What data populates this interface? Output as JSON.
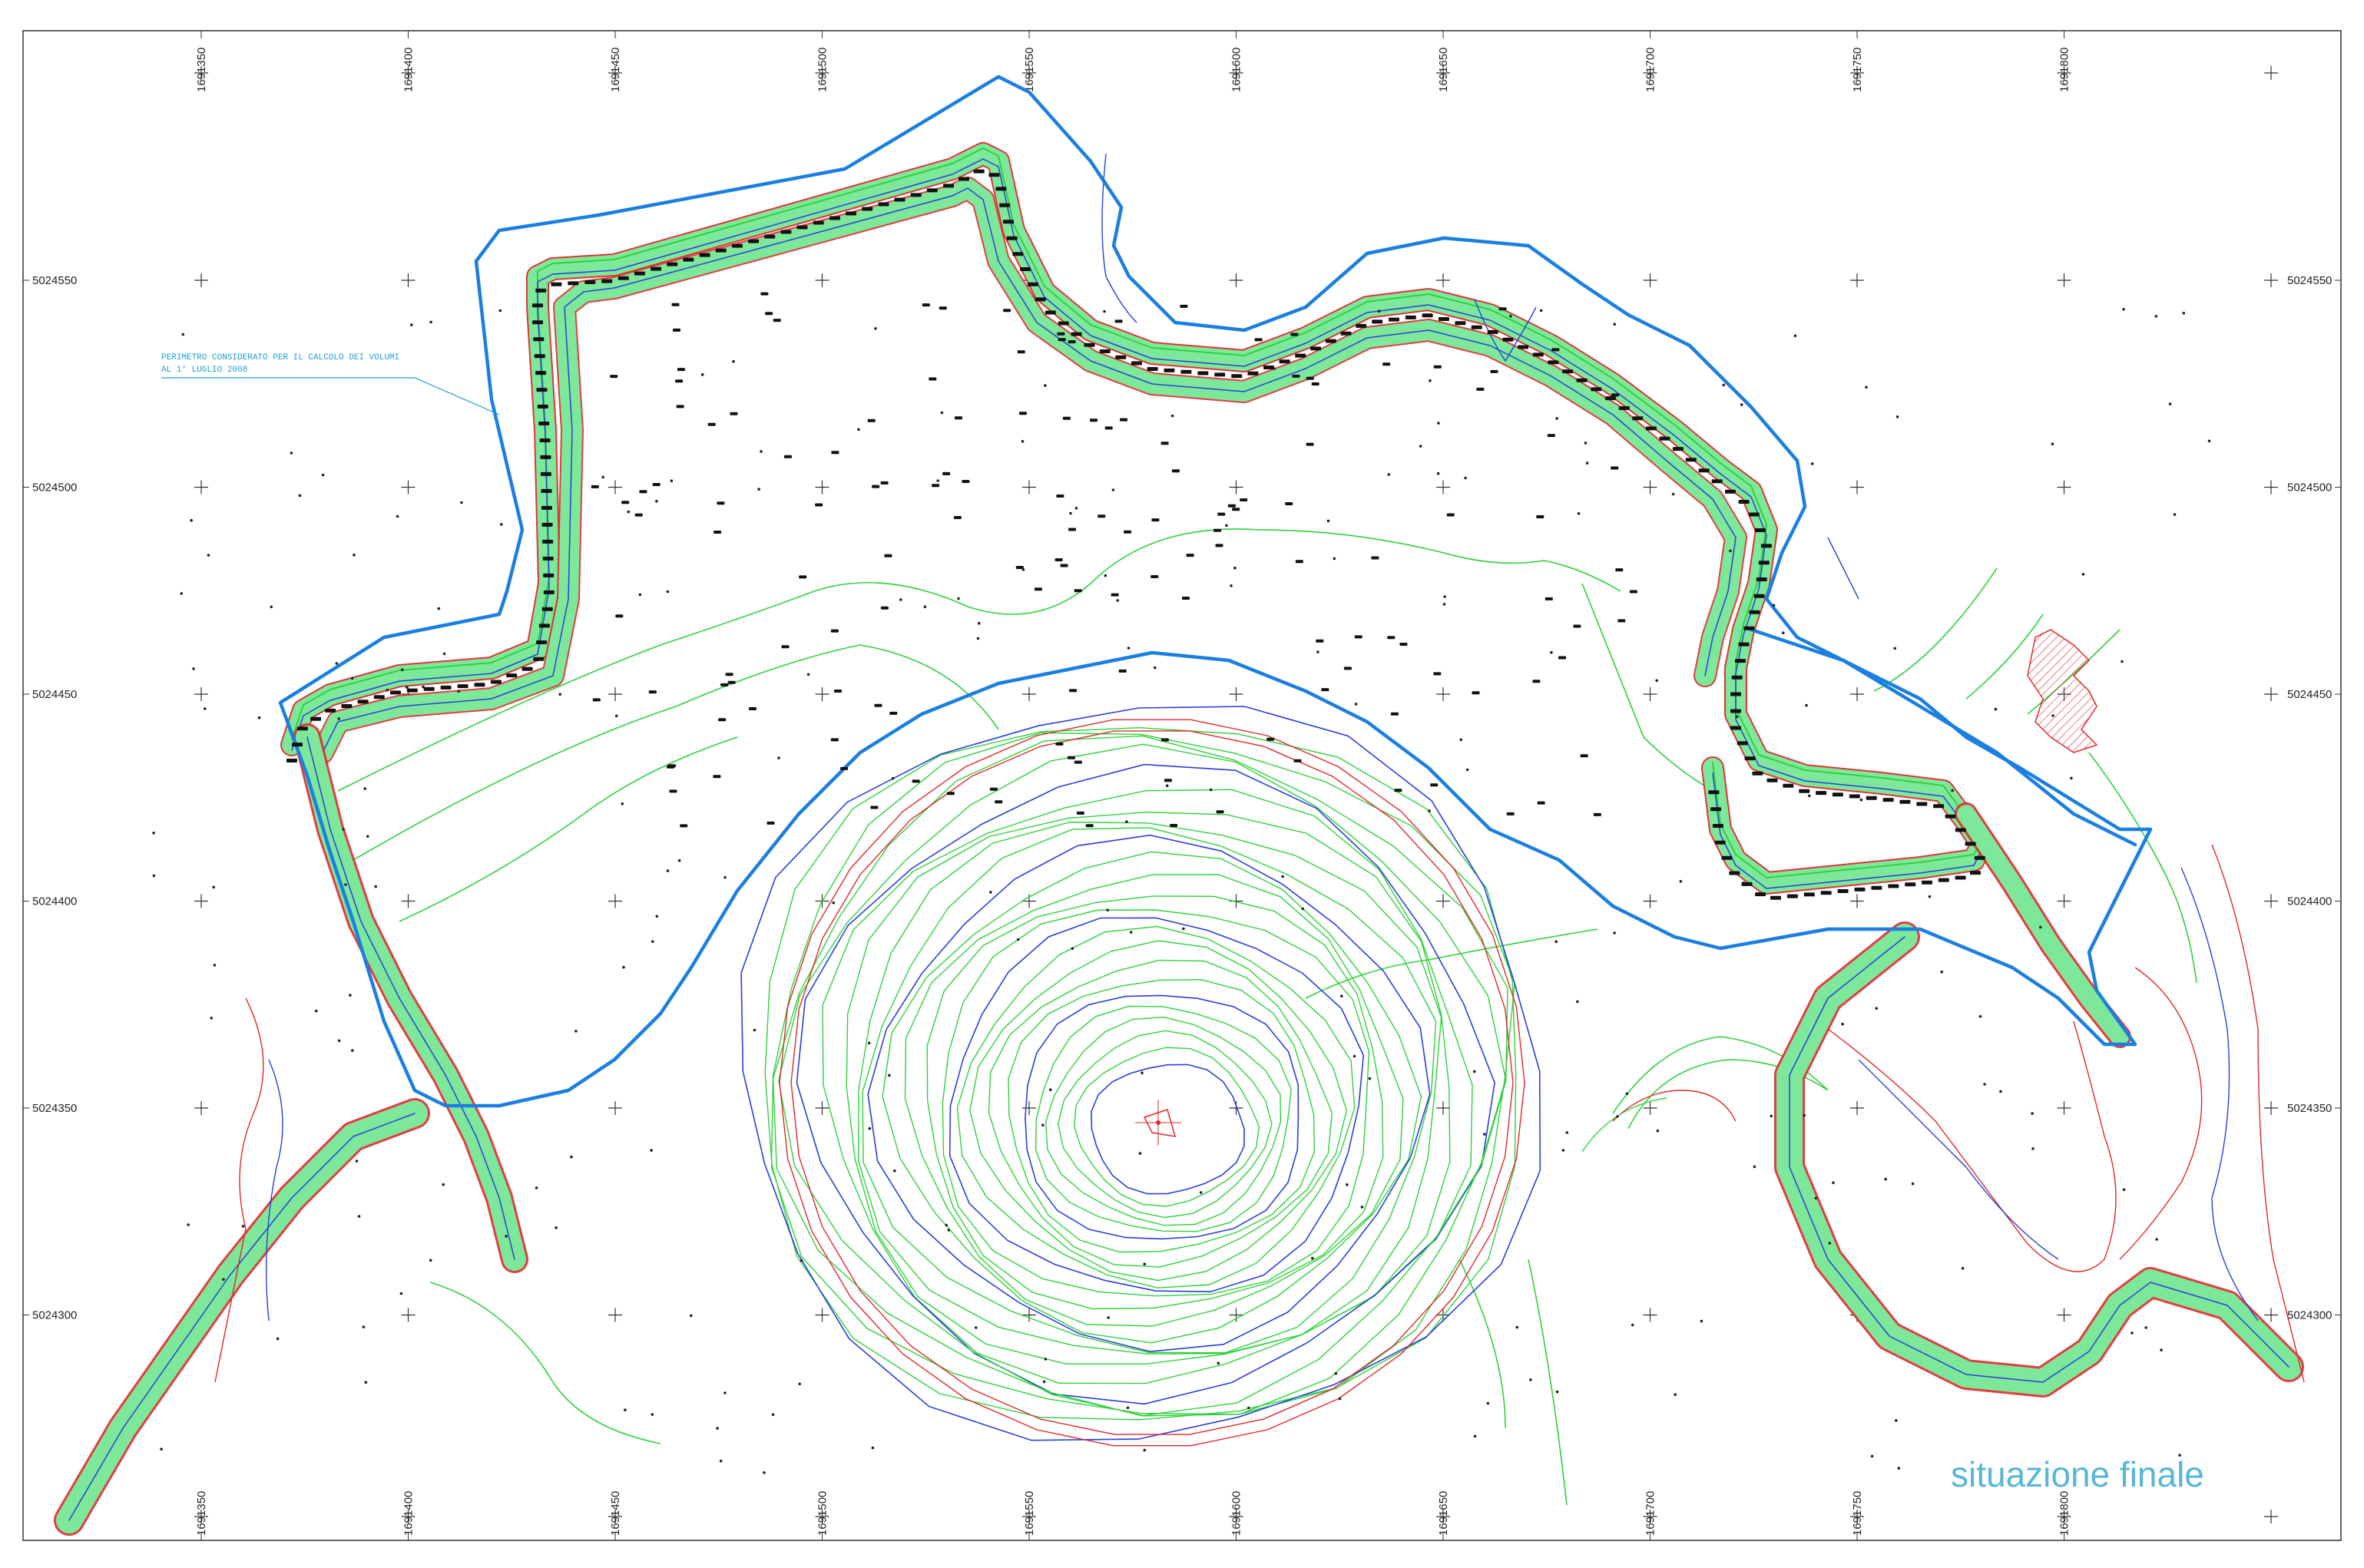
{
  "grid": {
    "x_labels": [
      "1691350",
      "1691400",
      "1691450",
      "1691500",
      "1691550",
      "1691600",
      "1691650",
      "1691700",
      "1691750",
      "1691800"
    ],
    "y_labels": [
      "5024550",
      "5024500",
      "5024450",
      "5024400",
      "5024350",
      "5024300"
    ]
  },
  "annotation": {
    "line1": "PERIMETRO CONSIDERATO PER IL CALCOLO DEI VOLUMI",
    "line2": "AL 1° LUGLIO 2008"
  },
  "caption": "situazione finale",
  "colors": {
    "perimeter": "#1a7fe0",
    "terrace_fill": "#7de89a",
    "contour_green": "#2fd13c",
    "contour_red": "#e0282c",
    "contour_blue": "#2a3fd8",
    "marker": "#000000",
    "hatch": "#e0282c"
  }
}
